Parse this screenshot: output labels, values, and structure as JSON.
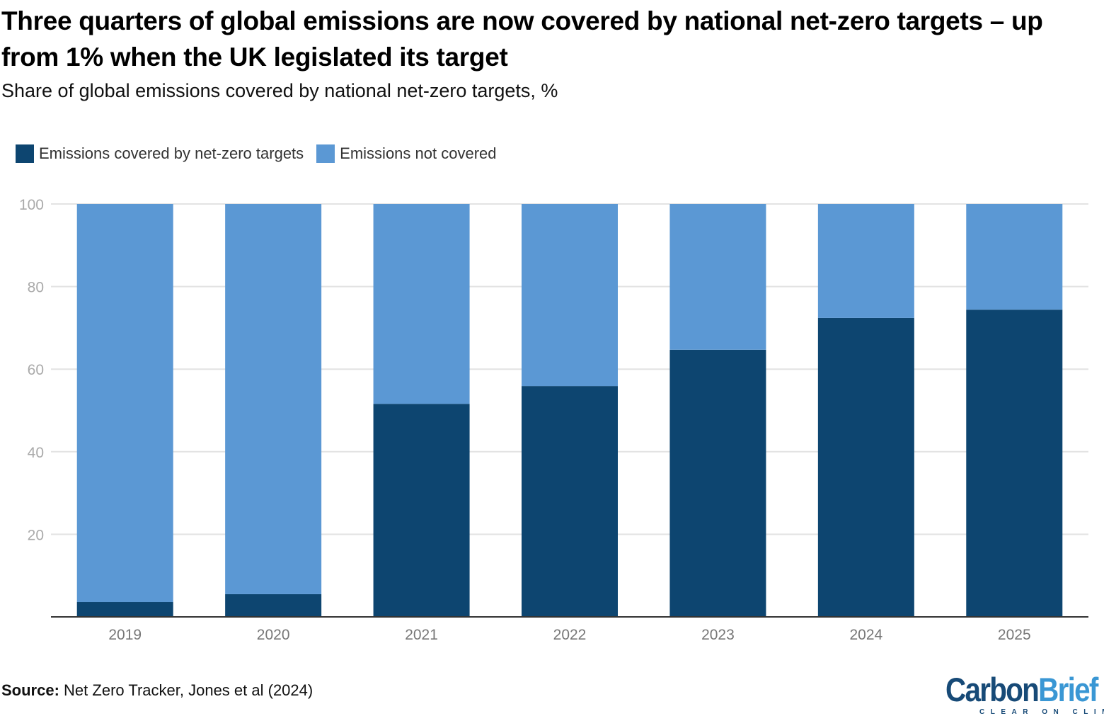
{
  "title": "Three quarters of global emissions are now covered by national net-zero targets – up from 1% when the UK legislated its target",
  "subtitle": "Share of global emissions covered by national net-zero targets, %",
  "source_label": "Source:",
  "source_text": "Net Zero Tracker, Jones et al (2024)",
  "logo": {
    "word1": "Carbon",
    "word2": "Brief",
    "tagline": "CLEAR ON CLIMATE",
    "color1": "#174a77",
    "color2": "#3a97d4"
  },
  "chart_data": {
    "type": "bar",
    "stacked": true,
    "categories": [
      "2019",
      "2020",
      "2021",
      "2022",
      "2023",
      "2024",
      "2025"
    ],
    "series": [
      {
        "name": "Emissions covered by net-zero targets",
        "color": "#0d4570",
        "values": [
          3.6,
          5.5,
          51.6,
          55.9,
          64.7,
          72.4,
          74.4
        ]
      },
      {
        "name": "Emissions not covered",
        "color": "#5b98d4",
        "values": [
          96.4,
          94.5,
          48.4,
          44.1,
          35.3,
          27.6,
          25.6
        ]
      }
    ],
    "ylim": [
      0,
      100
    ],
    "yticks": [
      "20",
      "40",
      "60",
      "80",
      "100"
    ],
    "grid": true,
    "legend": "top-left",
    "xlabel": "",
    "ylabel": ""
  }
}
